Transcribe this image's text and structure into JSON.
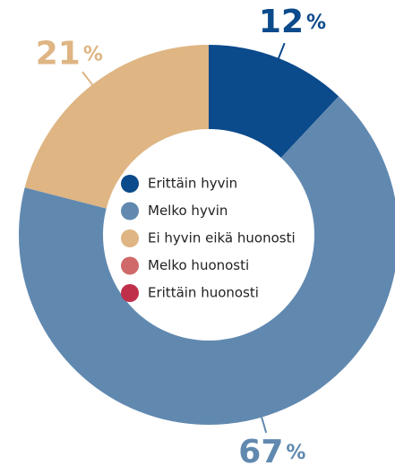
{
  "chart_data": {
    "type": "donut",
    "categories": [
      "Erittäin hyvin",
      "Melko hyvin",
      "Ei hyvin eikä huonosti",
      "Melko huonosti",
      "Erittäin huonosti"
    ],
    "values": [
      12,
      67,
      21,
      0,
      0
    ],
    "value_labels": [
      "12%",
      "67%",
      "21%",
      null,
      null
    ],
    "colors": [
      "#0b4a8b",
      "#6189b0",
      "#deb583",
      "#d06a6a",
      "#c02f4a"
    ]
  }
}
